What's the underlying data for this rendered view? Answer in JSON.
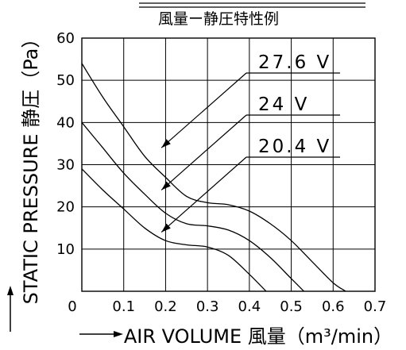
{
  "chart_data": {
    "type": "line",
    "title": "風量ー静圧特性例",
    "xlabel": "AIR VOLUME 風量（m³/min）",
    "ylabel": "STATIC PRESSURE 静圧（Pa）",
    "xlim": [
      0,
      0.7
    ],
    "ylim": [
      0,
      60
    ],
    "x_ticks": [
      "0",
      "0.1",
      "0.2",
      "0.3",
      "0.4",
      "0.5",
      "0.6",
      "0.7"
    ],
    "y_ticks": [
      "10",
      "20",
      "30",
      "40",
      "50",
      "60"
    ],
    "grid": true,
    "series": [
      {
        "name": "27.6 V",
        "x": [
          0,
          0.05,
          0.1,
          0.15,
          0.2,
          0.25,
          0.3,
          0.35,
          0.4,
          0.45,
          0.5,
          0.55,
          0.6,
          0.63
        ],
        "y": [
          54,
          46,
          39,
          32,
          27,
          22.5,
          21,
          20.5,
          19,
          16,
          12,
          7,
          2,
          0
        ]
      },
      {
        "name": "24 V",
        "x": [
          0,
          0.05,
          0.1,
          0.15,
          0.2,
          0.25,
          0.3,
          0.35,
          0.4,
          0.45,
          0.5,
          0.53
        ],
        "y": [
          40,
          34,
          28,
          23,
          18.5,
          16,
          15.5,
          14.5,
          12,
          8,
          3,
          0
        ]
      },
      {
        "name": "20.4 V",
        "x": [
          0,
          0.05,
          0.1,
          0.15,
          0.2,
          0.25,
          0.3,
          0.35,
          0.4,
          0.44
        ],
        "y": [
          29,
          24,
          19.5,
          15,
          12,
          11,
          10.5,
          8.5,
          4,
          0
        ]
      }
    ],
    "annotations": [
      {
        "label": "27.6 V",
        "points_to": {
          "x": 0.19,
          "y": 34
        }
      },
      {
        "label": "24 V",
        "points_to": {
          "x": 0.19,
          "y": 24
        }
      },
      {
        "label": "20.4 V",
        "points_to": {
          "x": 0.19,
          "y": 14
        }
      }
    ]
  }
}
